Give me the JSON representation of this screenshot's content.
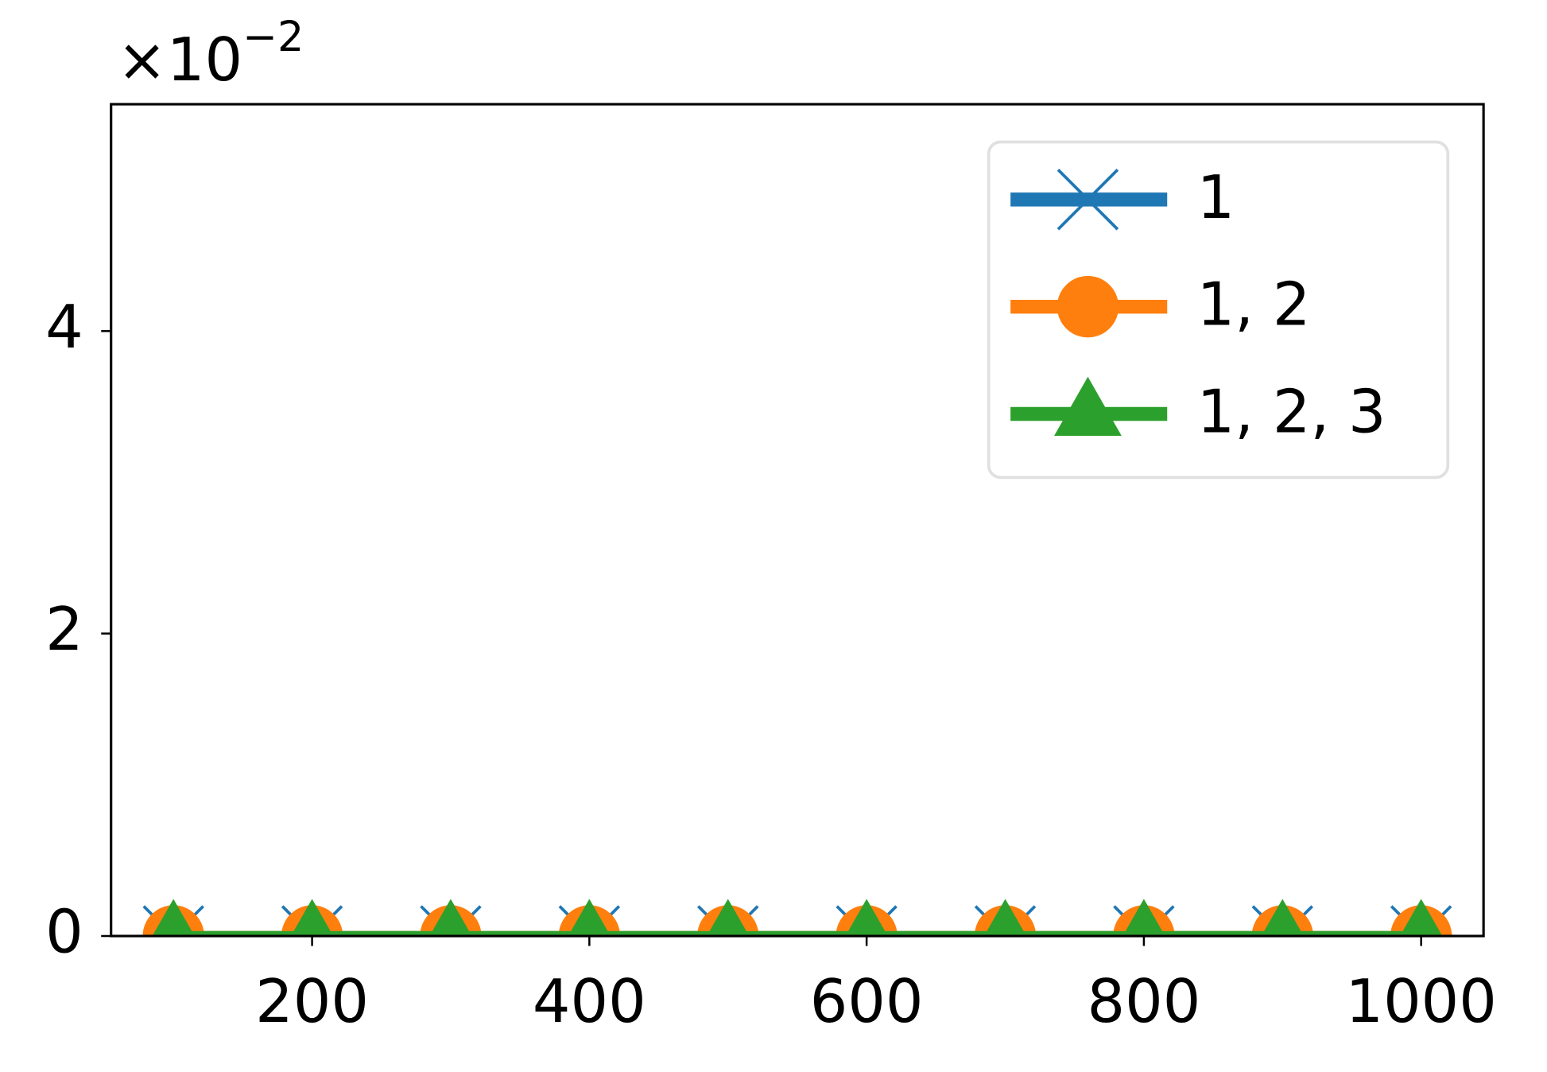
{
  "chart_data": {
    "type": "line",
    "y_offset_label": {
      "base": "×10",
      "exponent": "−2"
    },
    "x": [
      100,
      200,
      300,
      400,
      500,
      600,
      700,
      800,
      900,
      1000
    ],
    "series": [
      {
        "name": "1",
        "color": "#1f77b4",
        "marker": "x",
        "values": [
          0,
          0,
          0,
          0,
          0,
          0,
          0,
          0,
          0,
          0
        ]
      },
      {
        "name": "1, 2",
        "color": "#ff7f0e",
        "marker": "circle",
        "values": [
          0,
          0,
          0,
          0,
          0,
          0,
          0,
          0,
          0,
          0
        ]
      },
      {
        "name": "1, 2, 3",
        "color": "#2ca02c",
        "marker": "triangle",
        "values": [
          0,
          0,
          0,
          0,
          0,
          0,
          0,
          0,
          0,
          0
        ]
      }
    ],
    "xlim": [
      55,
      1045
    ],
    "xticks": [
      200,
      400,
      600,
      800,
      1000
    ],
    "ylim": [
      0,
      5.5
    ],
    "yticks": [
      0,
      2,
      4
    ],
    "grid": false,
    "legend": "upper right"
  }
}
